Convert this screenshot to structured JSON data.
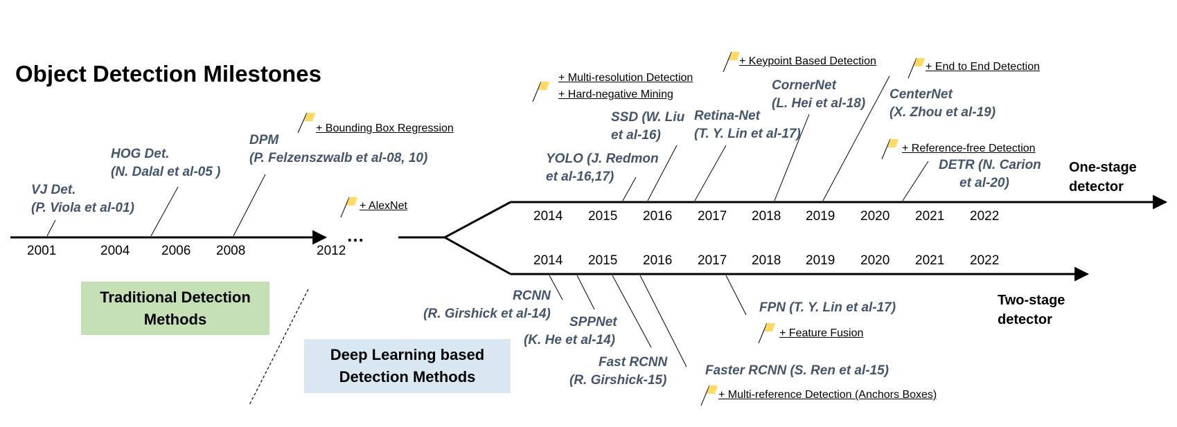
{
  "title": "Object Detection Milestones",
  "boxes": {
    "traditional": "Traditional Detection Methods",
    "deep": "Deep Learning based Detection Methods"
  },
  "detectors": {
    "one_stage": "One-stage detector",
    "two_stage": "Two-stage detector"
  },
  "ellipsis": "…",
  "traditional_years": [
    "2001",
    "2004",
    "2006",
    "2008",
    "2012"
  ],
  "one_stage_years": [
    "2014",
    "2015",
    "2016",
    "2017",
    "2018",
    "2019",
    "2020",
    "2021",
    "2022"
  ],
  "two_stage_years": [
    "2014",
    "2015",
    "2016",
    "2017",
    "2018",
    "2019",
    "2020",
    "2021",
    "2022"
  ],
  "methods": {
    "vj": {
      "name": "VJ Det.",
      "ref": "(P. Viola et al-01)"
    },
    "hog": {
      "name": "HOG Det.",
      "ref": "(N. Dalal et al-05 )"
    },
    "dpm": {
      "name": "DPM",
      "ref": "(P. Felzenszwalb et al-08, 10)"
    },
    "yolo": {
      "name": "YOLO (J. Redmon",
      "ref": "et al-16,17)"
    },
    "ssd": {
      "name": "SSD (W. Liu",
      "ref": "et al-16)"
    },
    "retina": {
      "name": "Retina-Net",
      "ref": "(T. Y. Lin et al-17)"
    },
    "corner": {
      "name": "CornerNet",
      "ref": "(L. Hei et al-18)"
    },
    "center": {
      "name": "CenterNet",
      "ref": "(X. Zhou et al-19)"
    },
    "detr": {
      "name": "DETR (N. Carion",
      "ref": "et al-20)"
    },
    "rcnn": {
      "name": "RCNN",
      "ref": "(R. Girshick et al-14)"
    },
    "spp": {
      "name": "SPPNet",
      "ref": "(K. He et al-14)"
    },
    "fast": {
      "name": "Fast RCNN",
      "ref": "(R. Girshick-15)"
    },
    "faster": {
      "name": "Faster RCNN (S. Ren et al-15)"
    },
    "fpn": {
      "name": "FPN (T. Y. Lin et al-17)"
    }
  },
  "flags": {
    "bbox": "+ Bounding Box Regression",
    "alexnet": "+ AlexNet",
    "multires": "+ Multi-resolution Detection",
    "hardneg": "+ Hard-negative Mining",
    "keypoint": "+ Keypoint Based Detection",
    "e2e": "+ End to End Detection",
    "reffree": "+ Reference-free Detection",
    "fusion": "+ Feature Fusion",
    "anchors": "+ Multi-reference Detection (Anchors Boxes)"
  },
  "colors": {
    "method_text": "#44546a",
    "flag": "#ffd966",
    "traditional_box": "#c5e0b4",
    "deep_box": "#dae8f4",
    "line": "#000000"
  }
}
